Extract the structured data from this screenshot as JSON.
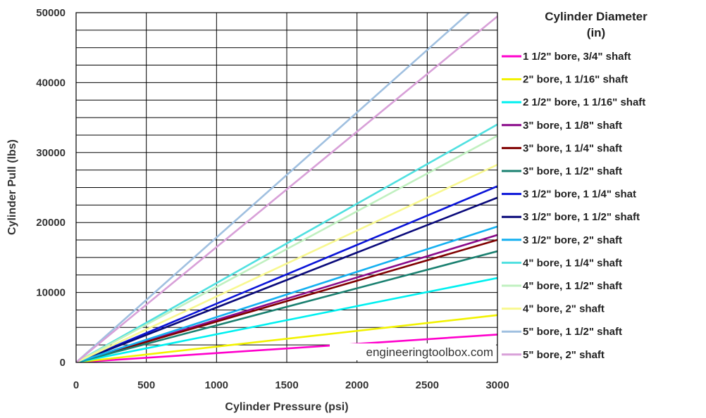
{
  "chart_data": {
    "type": "line",
    "xlabel": "Cylinder Pressure (psi)",
    "ylabel": "Cylinder Pull (lbs)",
    "xlim": [
      0,
      3000
    ],
    "ylim": [
      0,
      50000
    ],
    "x_ticks": [
      "0",
      "500",
      "1000",
      "1500",
      "2000",
      "2500",
      "3000"
    ],
    "y_ticks": [
      "0",
      "10000",
      "20000",
      "30000",
      "40000",
      "50000"
    ],
    "grid": true,
    "legend_title": "Cylinder Diameter (in)",
    "legend_title_lines": [
      "Cylinder Diameter",
      "(in)"
    ],
    "legend_position": "right",
    "watermark": "engineeringtoolbox.com",
    "x": [
      0,
      3000
    ],
    "series": [
      {
        "name": "1 1/2\" bore, 3/4\" shaft",
        "color": "#ff00cc",
        "values": [
          0,
          3980
        ]
      },
      {
        "name": "2\" bore, 1 1/16\" shaft",
        "color": "#f2f200",
        "values": [
          0,
          6760
        ]
      },
      {
        "name": "2 1/2\" bore, 1 1/16\" shaft",
        "color": "#00f0f0",
        "values": [
          0,
          12070
        ]
      },
      {
        "name": "3\" bore, 1 1/8\" shaft",
        "color": "#8a0a8a",
        "values": [
          0,
          18220
        ]
      },
      {
        "name": "3\" bore, 1 1/4\" shaft",
        "color": "#800000",
        "values": [
          0,
          17520
        ]
      },
      {
        "name": "3\" bore, 1 1/2\" shaft",
        "color": "#1a8070",
        "values": [
          0,
          15900
        ]
      },
      {
        "name": "3 1/2\" bore, 1 1/4\" shat",
        "color": "#0a14d8",
        "values": [
          0,
          25190
        ]
      },
      {
        "name": "3 1/2\" bore, 1 1/2\" shaft",
        "color": "#0a0a7a",
        "values": [
          0,
          23560
        ]
      },
      {
        "name": "3 1/2\" bore, 2\" shaft",
        "color": "#14b0f0",
        "values": [
          0,
          19430
        ]
      },
      {
        "name": "4\" bore, 1 1/4\" shaft",
        "color": "#50e0e0",
        "values": [
          0,
          34020
        ]
      },
      {
        "name": "4\" bore, 1 1/2\" shaft",
        "color": "#c0f0c0",
        "values": [
          0,
          32400
        ]
      },
      {
        "name": "4\" bore, 2\" shaft",
        "color": "#f8f890",
        "values": [
          0,
          28270
        ]
      },
      {
        "name": "5\" bore, 1 1/2\" shaft",
        "color": "#a0c0e0",
        "values": [
          0,
          53600
        ]
      },
      {
        "name": "5\" bore, 2\" shaft",
        "color": "#d8a0d8",
        "values": [
          0,
          49480
        ]
      }
    ]
  }
}
